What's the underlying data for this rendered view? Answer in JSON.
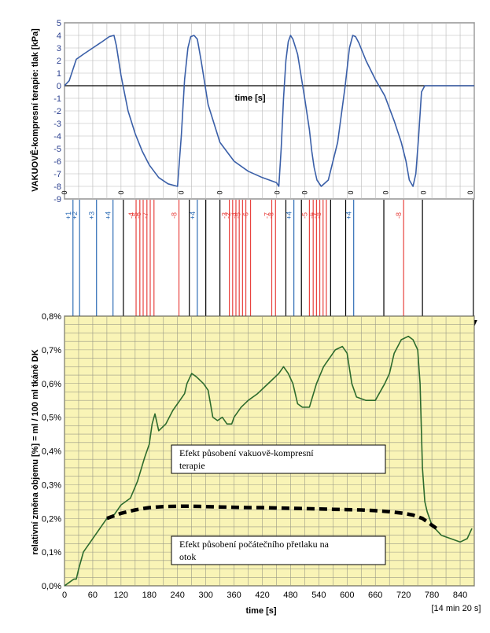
{
  "chart_data": [
    {
      "type": "line",
      "ylabel": "VAKUOVĚ-kompresní terapie: tlak [kPa]",
      "axis_label_inline": "time [s]",
      "ylim": [
        -9,
        5
      ],
      "yticks": [
        5,
        4,
        3,
        2,
        1,
        0,
        -1,
        -2,
        -3,
        -4,
        -5,
        -6,
        -7,
        -8,
        -9
      ],
      "xlim": [
        0,
        870
      ],
      "grid": true,
      "series": [
        {
          "color": "#3a5fa8",
          "x": [
            0,
            10,
            25,
            40,
            60,
            80,
            95,
            105,
            110,
            120,
            135,
            150,
            165,
            180,
            200,
            220,
            240,
            248,
            255,
            262,
            268,
            275,
            282,
            290,
            305,
            330,
            360,
            390,
            420,
            450,
            455,
            460,
            465,
            470,
            475,
            480,
            485,
            495,
            510,
            520,
            525,
            530,
            536,
            545,
            560,
            580,
            596,
            605,
            612,
            618,
            625,
            640,
            660,
            680,
            700,
            715,
            725,
            732,
            740,
            746,
            752,
            758,
            765,
            780,
            800,
            870
          ],
          "y": [
            0,
            0.4,
            2.1,
            2.5,
            3.0,
            3.5,
            3.9,
            4.0,
            3.2,
            0.8,
            -2.0,
            -3.8,
            -5.2,
            -6.3,
            -7.3,
            -7.8,
            -8.0,
            -4.0,
            0.5,
            3.0,
            3.9,
            4.0,
            3.7,
            2.0,
            -1.5,
            -4.5,
            -6.0,
            -6.8,
            -7.3,
            -7.7,
            -8.0,
            -5.0,
            -1.0,
            2.0,
            3.5,
            4.0,
            3.7,
            2.5,
            -1.0,
            -3.5,
            -5.2,
            -6.5,
            -7.5,
            -8.0,
            -7.5,
            -4.5,
            0.0,
            3.0,
            4.0,
            3.9,
            3.4,
            2.0,
            0.5,
            -0.8,
            -2.8,
            -4.5,
            -6.0,
            -7.5,
            -8.0,
            -7.0,
            -4.0,
            -0.5,
            0.0,
            0.0,
            0.0,
            0.0
          ]
        }
      ],
      "zero_markers": [
        {
          "x": 0,
          "label": "0"
        },
        {
          "x": 120,
          "label": "0"
        },
        {
          "x": 248,
          "label": "0"
        },
        {
          "x": 330,
          "label": "0"
        },
        {
          "x": 452,
          "label": "0"
        },
        {
          "x": 510,
          "label": "0"
        },
        {
          "x": 608,
          "label": "0"
        },
        {
          "x": 682,
          "label": "0"
        },
        {
          "x": 762,
          "label": "0"
        },
        {
          "x": 862,
          "label": "0"
        }
      ]
    },
    {
      "type": "markers",
      "markers": [
        {
          "x": 18,
          "label": "+1",
          "color": "blue"
        },
        {
          "x": 32,
          "label": "+2",
          "color": "blue"
        },
        {
          "x": 68,
          "label": "+3",
          "color": "blue"
        },
        {
          "x": 103,
          "label": "+4",
          "color": "blue"
        },
        {
          "x": 125,
          "label": "",
          "color": "black"
        },
        {
          "x": 152,
          "label": "-4",
          "color": "red"
        },
        {
          "x": 160,
          "label": "-5",
          "color": "red"
        },
        {
          "x": 167,
          "label": "-6",
          "color": "red"
        },
        {
          "x": 175,
          "label": "",
          "color": "red"
        },
        {
          "x": 182,
          "label": "-7",
          "color": "red"
        },
        {
          "x": 190,
          "label": "",
          "color": "red"
        },
        {
          "x": 243,
          "label": "-8",
          "color": "red"
        },
        {
          "x": 265,
          "label": "",
          "color": "black"
        },
        {
          "x": 282,
          "label": "+4",
          "color": "blue"
        },
        {
          "x": 300,
          "label": "",
          "color": "black"
        },
        {
          "x": 330,
          "label": "",
          "color": "black"
        },
        {
          "x": 350,
          "label": "-3",
          "color": "red"
        },
        {
          "x": 357,
          "label": "-2",
          "color": "red"
        },
        {
          "x": 364,
          "label": "",
          "color": "red"
        },
        {
          "x": 371,
          "label": "-4",
          "color": "red"
        },
        {
          "x": 378,
          "label": "-5",
          "color": "red"
        },
        {
          "x": 385,
          "label": "",
          "color": "red"
        },
        {
          "x": 395,
          "label": "-6",
          "color": "red"
        },
        {
          "x": 440,
          "label": "-7",
          "color": "red"
        },
        {
          "x": 448,
          "label": "-8",
          "color": "red"
        },
        {
          "x": 470,
          "label": "",
          "color": "black"
        },
        {
          "x": 487,
          "label": "+4",
          "color": "blue"
        },
        {
          "x": 503,
          "label": "",
          "color": "black"
        },
        {
          "x": 520,
          "label": "-5",
          "color": "red"
        },
        {
          "x": 528,
          "label": "",
          "color": "red"
        },
        {
          "x": 535,
          "label": "-6",
          "color": "red"
        },
        {
          "x": 542,
          "label": "-7",
          "color": "red"
        },
        {
          "x": 549,
          "label": "-8",
          "color": "red"
        },
        {
          "x": 556,
          "label": "",
          "color": "red"
        },
        {
          "x": 565,
          "label": "",
          "color": "black"
        },
        {
          "x": 597,
          "label": "",
          "color": "black"
        },
        {
          "x": 614,
          "label": "+4",
          "color": "blue"
        },
        {
          "x": 678,
          "label": "",
          "color": "black"
        },
        {
          "x": 720,
          "label": "-8",
          "color": "red"
        },
        {
          "x": 760,
          "label": "",
          "color": "black"
        },
        {
          "x": 868,
          "label": "",
          "color": "black"
        }
      ]
    },
    {
      "type": "line",
      "ylabel": "relativní změna objemu [%] = ml / 100 ml tkáně DK",
      "xlabel": "time [s]",
      "xlabel_extra": "[14 min 20 s]",
      "ylim": [
        0,
        0.8
      ],
      "yticks": [
        "0,0%",
        "0,1%",
        "0,2%",
        "0,3%",
        "0,4%",
        "0,5%",
        "0,6%",
        "0,7%",
        "0,8%"
      ],
      "xlim": [
        0,
        870
      ],
      "xticks": [
        0,
        60,
        120,
        180,
        240,
        300,
        360,
        420,
        480,
        540,
        600,
        660,
        720,
        780,
        840
      ],
      "grid": true,
      "background": "#f9f4b6",
      "series": [
        {
          "style": "solid",
          "color": "#2d6b2d",
          "x": [
            0,
            10,
            20,
            25,
            30,
            40,
            55,
            70,
            90,
            105,
            120,
            140,
            155,
            170,
            180,
            186,
            192,
            200,
            215,
            230,
            245,
            255,
            260,
            270,
            280,
            295,
            305,
            315,
            325,
            335,
            345,
            355,
            360,
            375,
            390,
            410,
            425,
            440,
            455,
            465,
            475,
            485,
            495,
            505,
            520,
            535,
            550,
            560,
            575,
            590,
            600,
            610,
            620,
            640,
            660,
            680,
            690,
            700,
            715,
            730,
            740,
            750,
            755,
            760,
            765,
            770,
            780,
            800,
            820,
            840,
            855,
            865
          ],
          "y": [
            0.0,
            0.01,
            0.02,
            0.02,
            0.05,
            0.1,
            0.13,
            0.16,
            0.2,
            0.21,
            0.24,
            0.26,
            0.31,
            0.38,
            0.42,
            0.48,
            0.51,
            0.46,
            0.48,
            0.52,
            0.55,
            0.57,
            0.6,
            0.63,
            0.62,
            0.6,
            0.58,
            0.5,
            0.49,
            0.5,
            0.48,
            0.48,
            0.5,
            0.53,
            0.55,
            0.57,
            0.59,
            0.61,
            0.63,
            0.65,
            0.63,
            0.6,
            0.54,
            0.53,
            0.53,
            0.6,
            0.65,
            0.67,
            0.7,
            0.71,
            0.69,
            0.6,
            0.56,
            0.55,
            0.55,
            0.6,
            0.63,
            0.69,
            0.73,
            0.74,
            0.73,
            0.7,
            0.6,
            0.35,
            0.25,
            0.22,
            0.18,
            0.15,
            0.14,
            0.13,
            0.14,
            0.17
          ]
        },
        {
          "style": "dashed",
          "color": "#000000",
          "x": [
            90,
            120,
            150,
            180,
            210,
            240,
            270,
            300,
            330,
            360,
            390,
            420,
            450,
            480,
            510,
            540,
            570,
            600,
            630,
            660,
            690,
            720,
            740,
            760,
            775,
            790
          ],
          "y": [
            0.2,
            0.215,
            0.225,
            0.232,
            0.235,
            0.236,
            0.236,
            0.235,
            0.234,
            0.233,
            0.232,
            0.232,
            0.231,
            0.23,
            0.229,
            0.228,
            0.227,
            0.226,
            0.225,
            0.223,
            0.22,
            0.215,
            0.21,
            0.2,
            0.185,
            0.17
          ]
        }
      ],
      "annotations": [
        {
          "lines": [
            "Efekt působení vakuově-kompresní",
            "terapie"
          ]
        },
        {
          "lines": [
            "Efekt působení počátečního přetlaku na",
            "otok"
          ]
        }
      ]
    }
  ]
}
